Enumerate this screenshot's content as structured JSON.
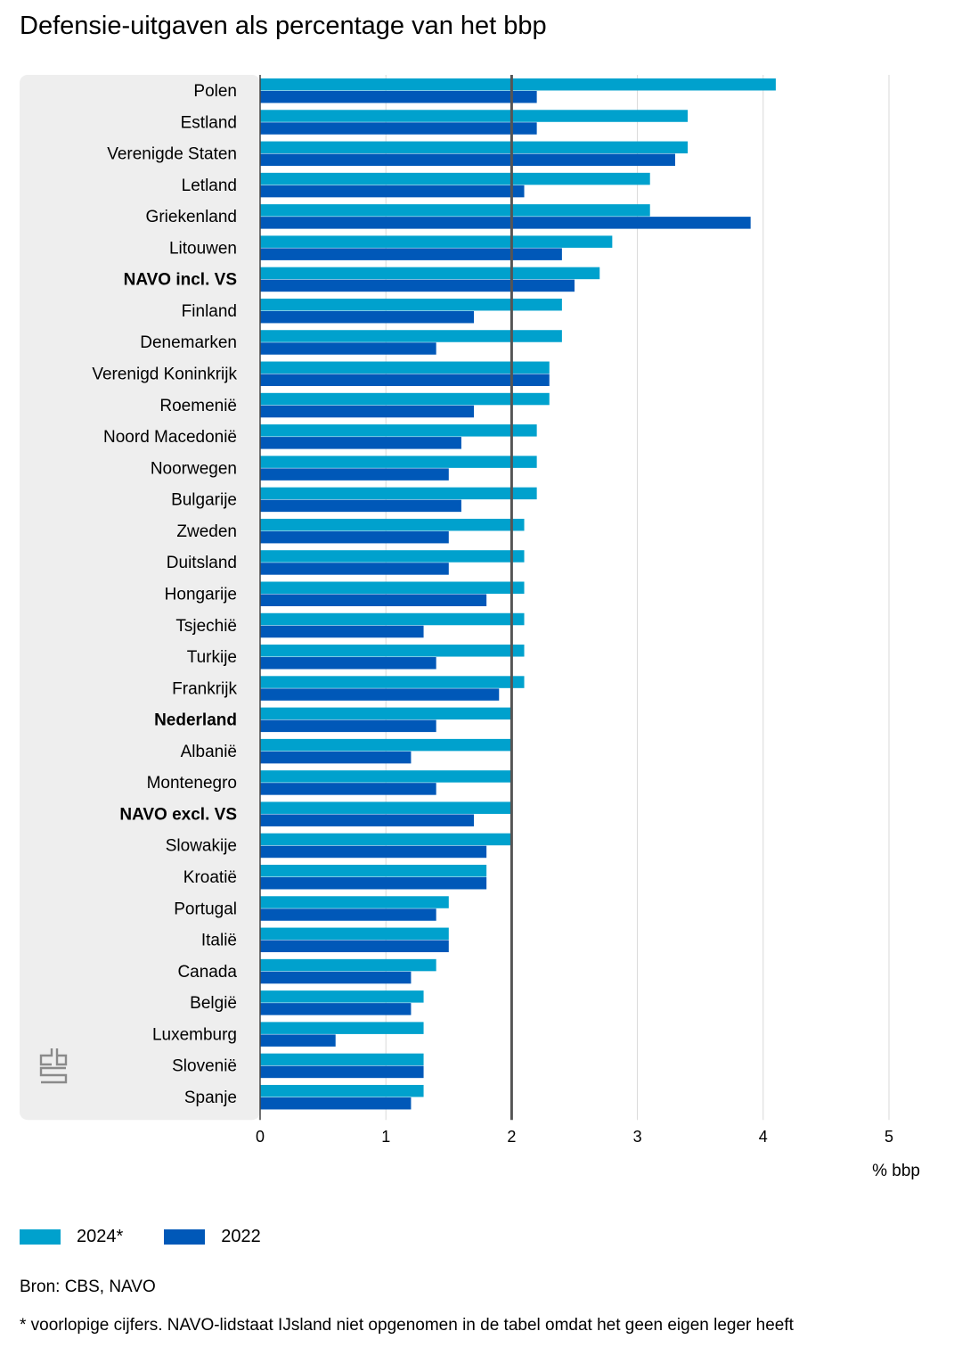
{
  "title": "Defensie-uitgaven als percentage van het bbp",
  "legend": [
    {
      "label": "2024*",
      "color": "#00a1cd"
    },
    {
      "label": "2022",
      "color": "#0058b8"
    }
  ],
  "source": "Bron: CBS, NAVO",
  "footnote": "* voorlopige cijfers. NAVO-lidstaat IJsland niet opgenomen in de tabel omdat het geen eigen leger heeft",
  "logo": "cbs",
  "chart_data": {
    "type": "bar",
    "orientation": "horizontal",
    "xlabel": "% bbp",
    "xlim": [
      0,
      5
    ],
    "xticks": [
      0,
      1,
      2,
      3,
      4,
      5
    ],
    "reference_line": 2,
    "grid": true,
    "legend_position": "bottom",
    "categories": [
      "Polen",
      "Estland",
      "Verenigde Staten",
      "Letland",
      "Griekenland",
      "Litouwen",
      "NAVO incl. VS",
      "Finland",
      "Denemarken",
      "Verenigd Koninkrijk",
      "Roemenië",
      "Noord Macedonië",
      "Noorwegen",
      "Bulgarije",
      "Zweden",
      "Duitsland",
      "Hongarije",
      "Tsjechië",
      "Turkije",
      "Frankrijk",
      "Nederland",
      "Albanië",
      "Montenegro",
      "NAVO excl. VS",
      "Slowakije",
      "Kroatië",
      "Portugal",
      "Italië",
      "Canada",
      "België",
      "Luxemburg",
      "Slovenië",
      "Spanje"
    ],
    "bold_categories": [
      "NAVO incl. VS",
      "Nederland",
      "NAVO excl. VS"
    ],
    "series": [
      {
        "name": "2024*",
        "color": "#00a1cd",
        "values": [
          4.1,
          3.4,
          3.4,
          3.1,
          3.1,
          2.8,
          2.7,
          2.4,
          2.4,
          2.3,
          2.3,
          2.2,
          2.2,
          2.2,
          2.1,
          2.1,
          2.1,
          2.1,
          2.1,
          2.1,
          2.0,
          2.0,
          2.0,
          2.0,
          2.0,
          1.8,
          1.5,
          1.5,
          1.4,
          1.3,
          1.3,
          1.3,
          1.3
        ]
      },
      {
        "name": "2022",
        "color": "#0058b8",
        "values": [
          2.2,
          2.2,
          3.3,
          2.1,
          3.9,
          2.4,
          2.5,
          1.7,
          1.4,
          2.3,
          1.7,
          1.6,
          1.5,
          1.6,
          1.5,
          1.5,
          1.8,
          1.3,
          1.4,
          1.9,
          1.4,
          1.2,
          1.4,
          1.7,
          1.8,
          1.8,
          1.4,
          1.5,
          1.2,
          1.2,
          0.6,
          1.3,
          1.2
        ]
      }
    ]
  }
}
